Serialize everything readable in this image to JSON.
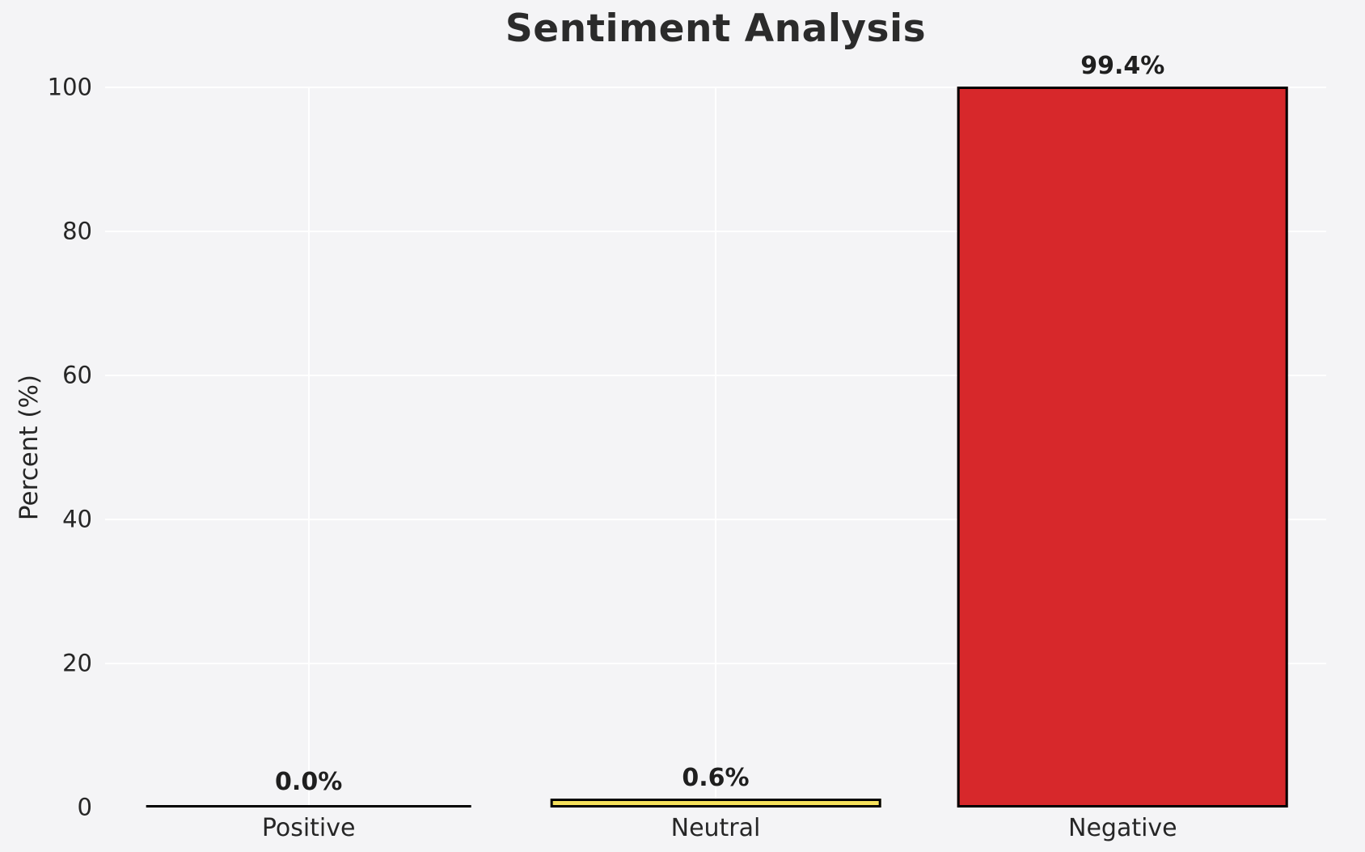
{
  "chart_data": {
    "type": "bar",
    "title": "Sentiment Analysis",
    "categories": [
      "Positive",
      "Neutral",
      "Negative"
    ],
    "values": [
      0.0,
      0.6,
      99.4
    ],
    "value_labels": [
      "0.0%",
      "0.6%",
      "99.4%"
    ],
    "xlabel": "",
    "ylabel": "Percent (%)",
    "ylim": [
      0,
      100
    ],
    "yticks": [
      0,
      20,
      40,
      60,
      80,
      100
    ],
    "grid": true,
    "legend": "none",
    "bar_colors": [
      "#cccccc",
      "#f6e15b",
      "#d7282b"
    ],
    "bar_edge_color": "#000000",
    "background_color": "#f4f4f6",
    "grid_color": "#ffffff"
  }
}
